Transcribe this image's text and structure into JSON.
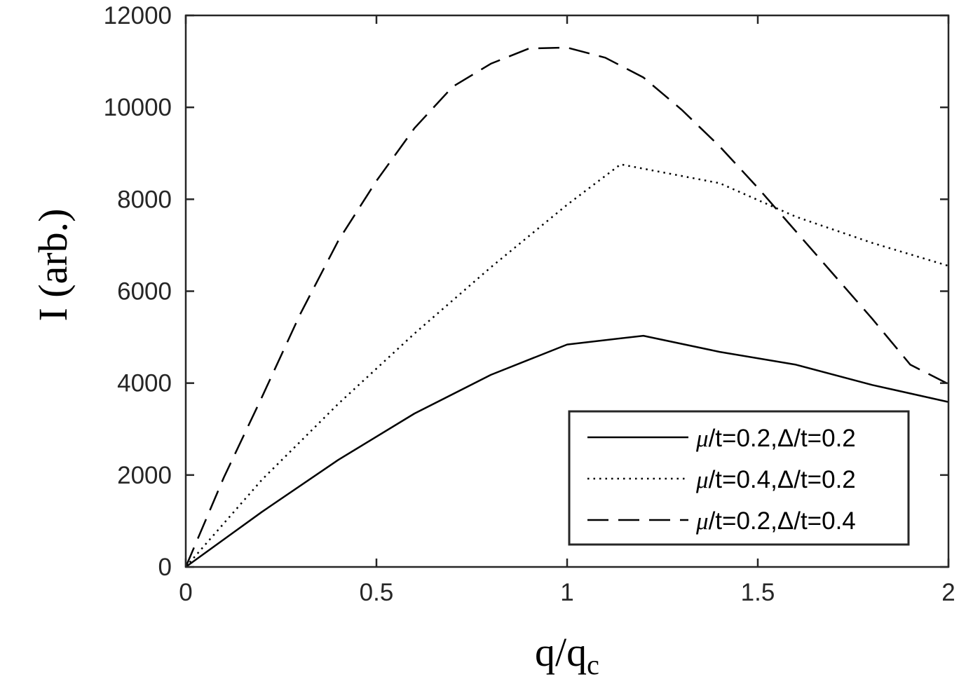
{
  "chart_data": {
    "type": "line",
    "title": "",
    "xlabel": "q/q",
    "xlabel_sub": "c",
    "ylabel": "I (arb.)",
    "xlim": [
      0,
      2
    ],
    "ylim": [
      0,
      12000
    ],
    "xticks": [
      0,
      0.5,
      1,
      1.5,
      2
    ],
    "xtick_labels": [
      "0",
      "0.5",
      "1",
      "1.5",
      "2"
    ],
    "yticks": [
      0,
      2000,
      4000,
      6000,
      8000,
      10000,
      12000
    ],
    "ytick_labels": [
      "0",
      "2000",
      "4000",
      "6000",
      "8000",
      "10000",
      "12000"
    ],
    "grid": false,
    "legend_position": "bottom-right",
    "series": [
      {
        "name": "μ/t=0.2,Δ/t=0.2",
        "legend_mu": "μ",
        "legend_rest": "/t=0.2,Δ/t=0.2",
        "style": "solid",
        "color": "#000000",
        "x": [
          0,
          0.2,
          0.4,
          0.6,
          0.8,
          1.0,
          1.2,
          1.4,
          1.6,
          1.8,
          2.0
        ],
        "y": [
          0,
          1200,
          2330,
          3340,
          4180,
          4840,
          5030,
          4680,
          4400,
          3960,
          3590
        ]
      },
      {
        "name": "μ/t=0.4,Δ/t=0.2",
        "legend_mu": "μ",
        "legend_rest": "/t=0.4,Δ/t=0.2",
        "style": "dotted",
        "color": "#000000",
        "x": [
          0,
          0.2,
          0.4,
          0.6,
          0.8,
          1.0,
          1.14,
          1.4,
          1.6,
          1.8,
          2.0
        ],
        "y": [
          0,
          1900,
          3550,
          5080,
          6520,
          7880,
          8760,
          8350,
          7620,
          7050,
          6550
        ]
      },
      {
        "name": "μ/t=0.2,Δ/t=0.4",
        "legend_mu": "μ",
        "legend_rest": "/t=0.2,Δ/t=0.4",
        "style": "dashed",
        "color": "#000000",
        "x": [
          0,
          0.1,
          0.2,
          0.3,
          0.4,
          0.5,
          0.6,
          0.7,
          0.8,
          0.9,
          1.0,
          1.1,
          1.2,
          1.3,
          1.4,
          1.5,
          1.6,
          1.7,
          1.8,
          1.9,
          2.0
        ],
        "y": [
          0,
          1950,
          3700,
          5500,
          7100,
          8400,
          9550,
          10450,
          10950,
          11280,
          11300,
          11080,
          10650,
          9950,
          9150,
          8250,
          7300,
          6350,
          5400,
          4400,
          3980
        ]
      }
    ]
  }
}
